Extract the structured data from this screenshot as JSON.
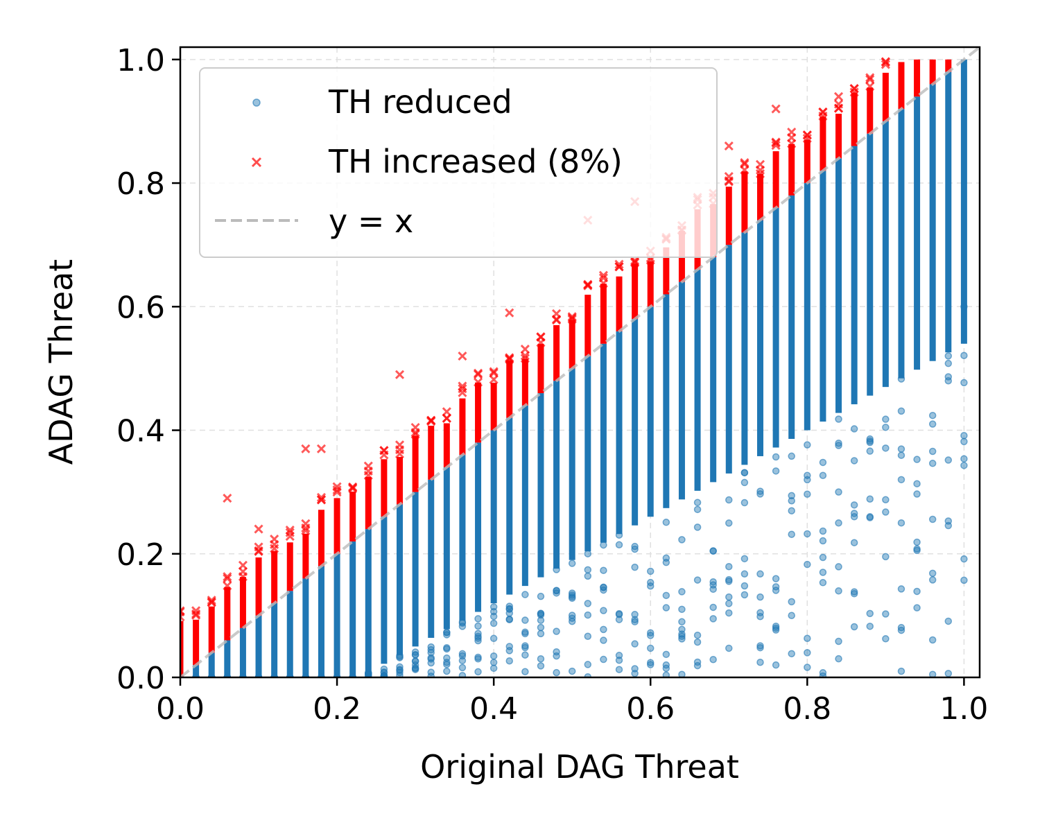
{
  "chart_data": {
    "type": "scatter",
    "xlabel": "Original DAG Threat",
    "ylabel": "ADAG Threat",
    "xlim": [
      0.0,
      1.02
    ],
    "ylim": [
      0.0,
      1.02
    ],
    "grid": true,
    "legend_position": "top-left",
    "xticks": [
      "0.0",
      "0.2",
      "0.4",
      "0.6",
      "0.8",
      "1.0"
    ],
    "yticks": [
      "0.0",
      "0.2",
      "0.4",
      "0.6",
      "0.8",
      "1.0"
    ],
    "x_columns": {
      "start": 0.0,
      "stop": 1.0,
      "step": 0.02
    },
    "series": [
      {
        "name": "TH reduced",
        "marker": "circle",
        "color": "#1f77b4",
        "description_rule": "for each x column, dense points from 0 up to y = x",
        "outliers": [
          [
            0.3,
            0.02
          ],
          [
            0.34,
            0.01
          ],
          [
            0.38,
            0.03
          ],
          [
            0.42,
            0.05
          ],
          [
            0.46,
            0.03
          ],
          [
            0.5,
            0.01
          ],
          [
            0.54,
            0.06
          ],
          [
            0.58,
            0.09
          ],
          [
            0.62,
            0.02
          ],
          [
            0.64,
            0.07
          ],
          [
            0.7,
            0.13
          ],
          [
            0.74,
            0.13
          ],
          [
            0.76,
            0.02
          ],
          [
            0.8,
            0.04
          ],
          [
            0.82,
            0.17
          ],
          [
            0.84,
            0.3
          ],
          [
            0.86,
            0.26
          ],
          [
            0.88,
            0.26
          ],
          [
            0.92,
            0.25
          ],
          [
            0.92,
            0.32
          ],
          [
            0.96,
            0.41
          ],
          [
            0.98,
            0.48
          ],
          [
            1.0,
            0.6
          ]
        ]
      },
      {
        "name": "TH increased (8%)",
        "marker": "x",
        "color": "#ff0000",
        "description_rule": "for each x column, dense points from y = x up to about x + 0.1",
        "outliers": [
          [
            0.06,
            0.29
          ],
          [
            0.1,
            0.24
          ],
          [
            0.16,
            0.37
          ],
          [
            0.18,
            0.37
          ],
          [
            0.28,
            0.49
          ],
          [
            0.36,
            0.52
          ],
          [
            0.42,
            0.59
          ],
          [
            0.52,
            0.74
          ],
          [
            0.58,
            0.77
          ],
          [
            0.7,
            0.86
          ],
          [
            0.76,
            0.92
          ],
          [
            0.84,
            0.94
          ]
        ]
      },
      {
        "name": "y = x",
        "marker": "dashed-line",
        "color": "#bbbbbb",
        "x": [
          0.0,
          1.02
        ],
        "y": [
          0.0,
          1.02
        ]
      }
    ]
  }
}
